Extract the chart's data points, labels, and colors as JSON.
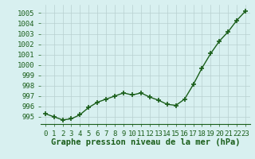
{
  "x": [
    0,
    1,
    2,
    3,
    4,
    5,
    6,
    7,
    8,
    9,
    10,
    11,
    12,
    13,
    14,
    15,
    16,
    17,
    18,
    19,
    20,
    21,
    22,
    23
  ],
  "y": [
    995.3,
    995.0,
    994.7,
    994.8,
    995.2,
    995.9,
    996.4,
    996.7,
    997.0,
    997.3,
    997.1,
    997.3,
    996.9,
    996.6,
    996.2,
    996.1,
    996.7,
    998.1,
    999.7,
    1001.1,
    1002.3,
    1003.2,
    1004.3,
    1005.2
  ],
  "line_color": "#1a5e1a",
  "marker": "+",
  "marker_size": 4,
  "marker_lw": 1.2,
  "bg_color": "#d8f0f0",
  "grid_color": "#b8d0d0",
  "xlabel": "Graphe pression niveau de la mer (hPa)",
  "xlabel_fontsize": 7.5,
  "xlabel_color": "#1a5e1a",
  "xlabel_bold": true,
  "tick_label_color": "#1a5e1a",
  "tick_label_fontsize": 6.5,
  "ylim": [
    994.3,
    1005.8
  ],
  "yticks": [
    995,
    996,
    997,
    998,
    999,
    1000,
    1001,
    1002,
    1003,
    1004,
    1005
  ],
  "xlim": [
    -0.5,
    23.5
  ],
  "xticks": [
    0,
    1,
    2,
    3,
    4,
    5,
    6,
    7,
    8,
    9,
    10,
    11,
    12,
    13,
    14,
    15,
    16,
    17,
    18,
    19,
    20,
    21,
    22,
    23
  ],
  "line_width": 1.0
}
